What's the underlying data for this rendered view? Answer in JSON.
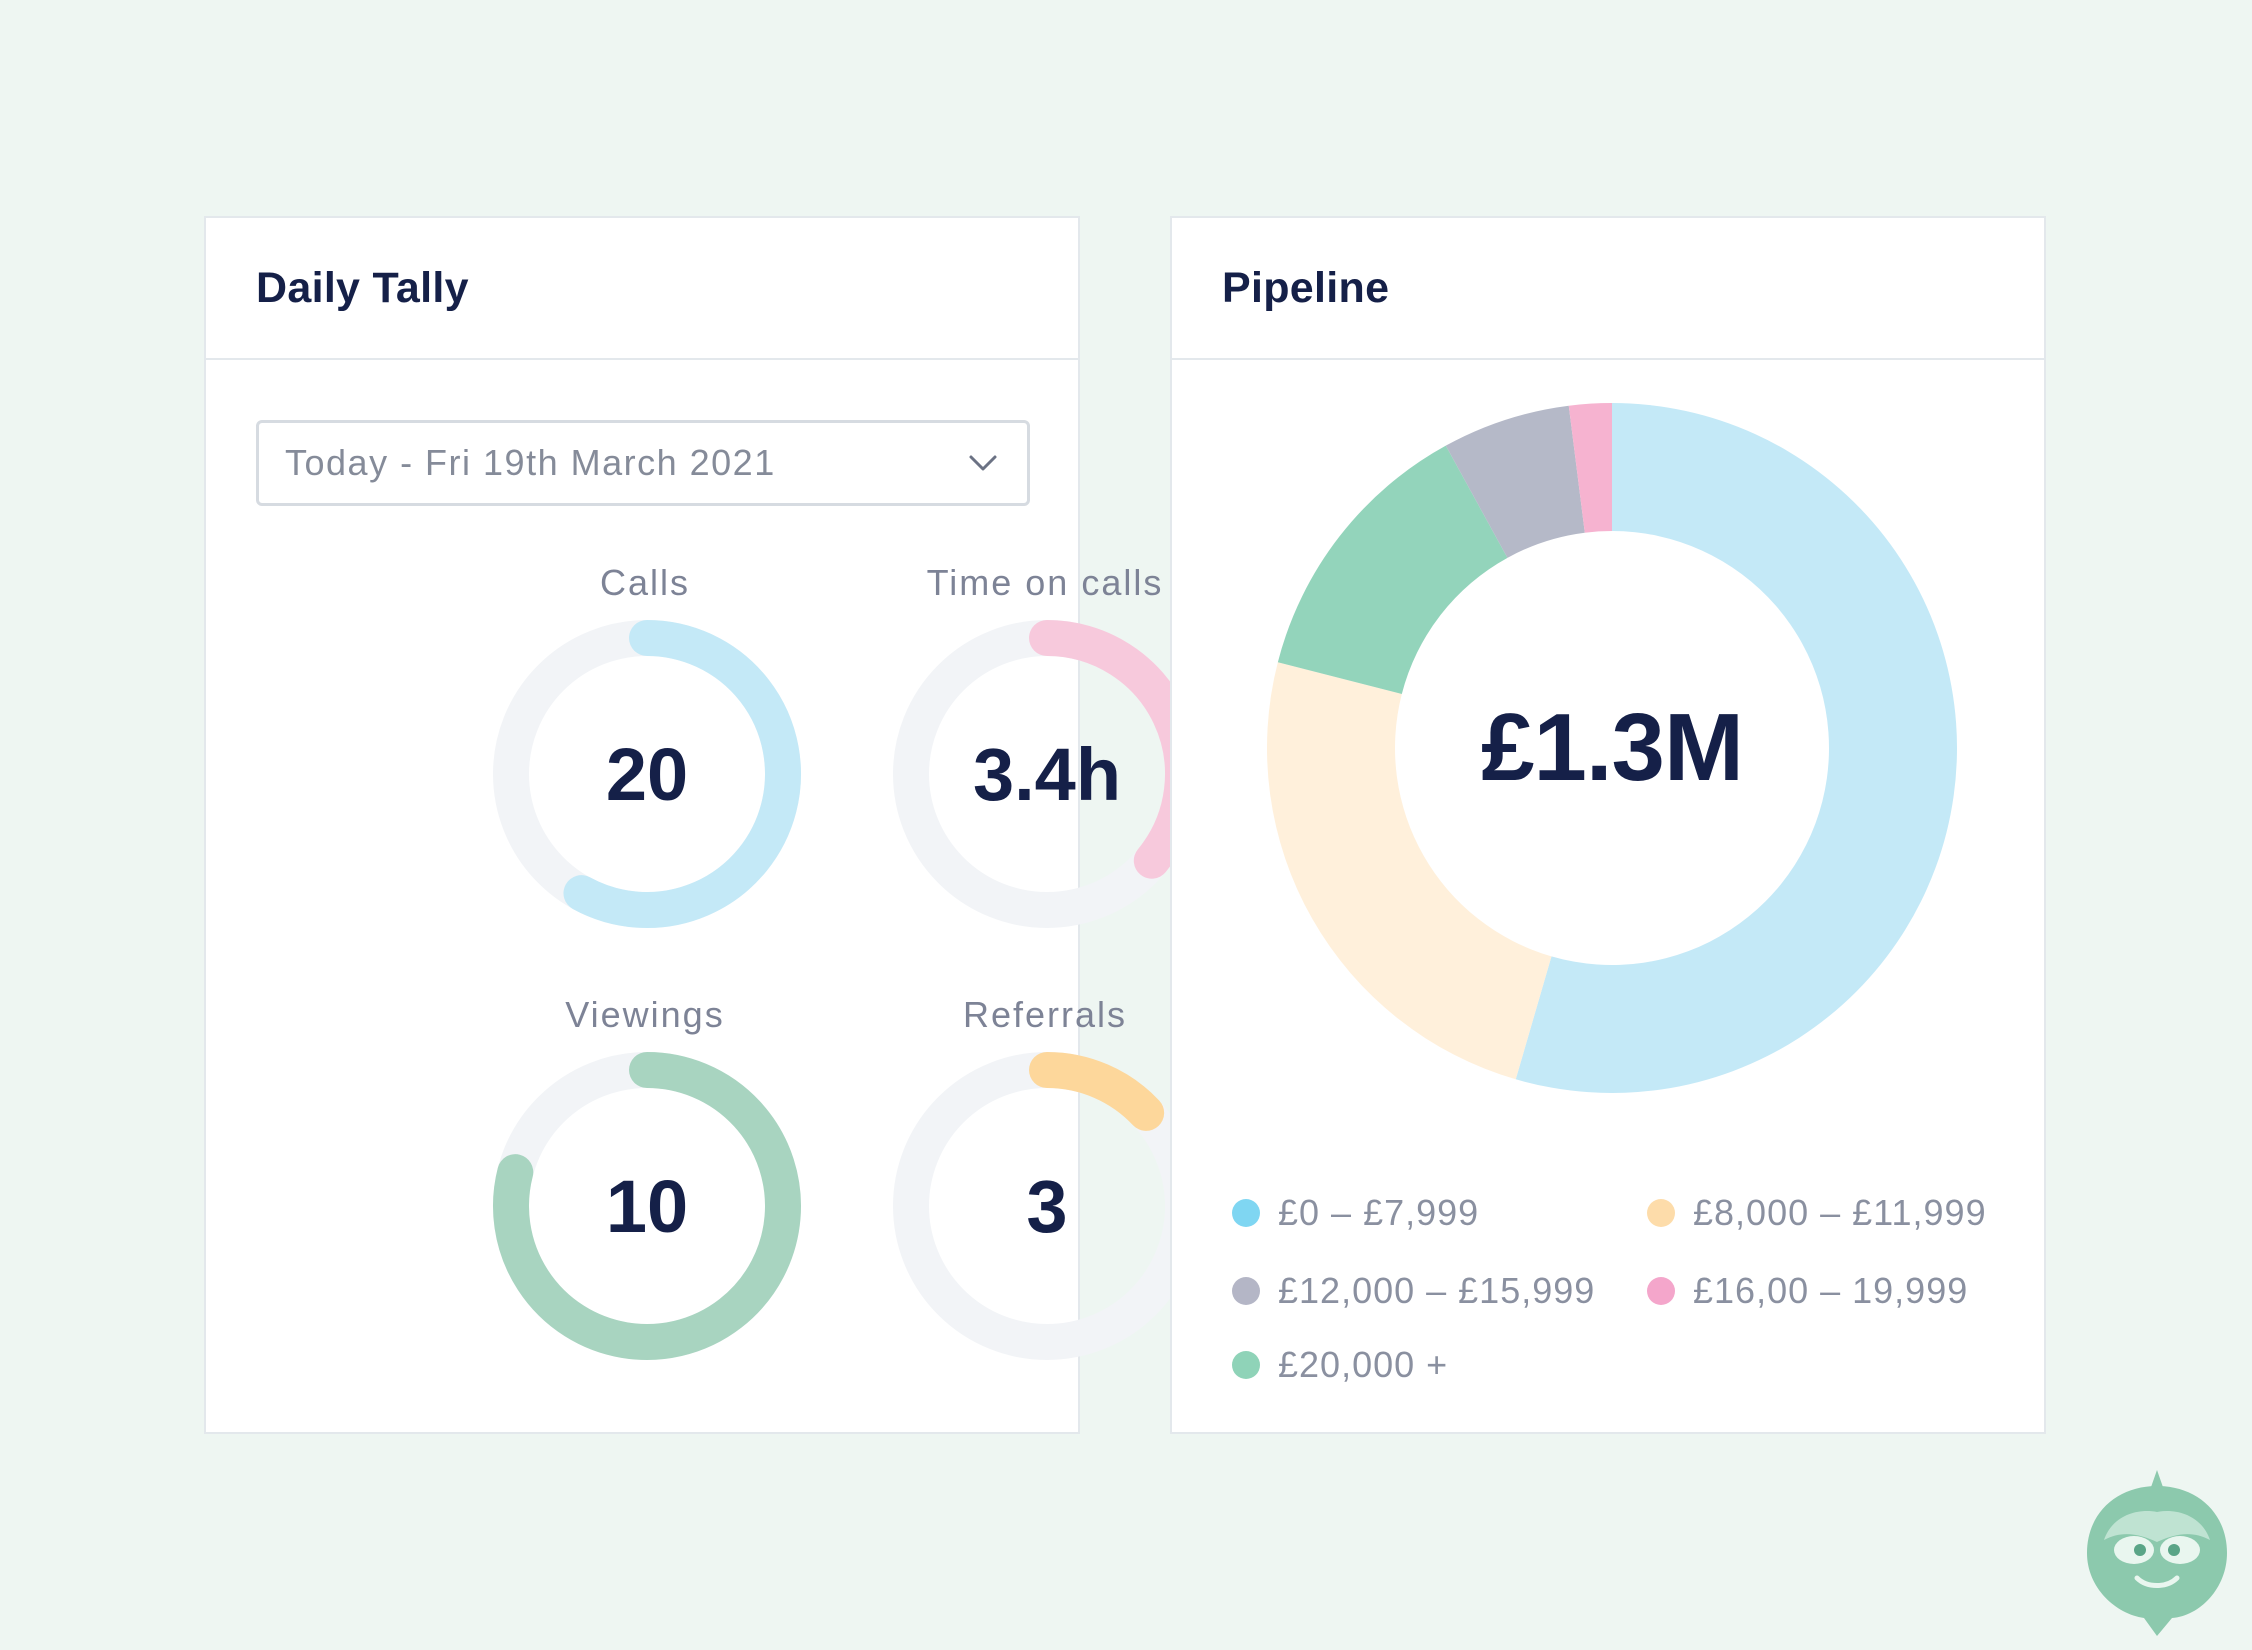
{
  "tally": {
    "title": "Daily Tally",
    "dropdown": {
      "value": "Today - Fri 19th March 2021"
    },
    "metrics": [
      {
        "label": "Calls",
        "value": "20",
        "color": "#c4e9f7",
        "arc_start": 0.0,
        "arc_fraction": 0.58
      },
      {
        "label": "Time on calls",
        "value": "3.4h",
        "color": "#f7c9dc",
        "arc_start": 0.0,
        "arc_fraction": 0.36
      },
      {
        "label": "Viewings",
        "value": "10",
        "color": "#a8d4c0",
        "arc_start": 0.0,
        "arc_fraction": 0.79
      },
      {
        "label": "Referrals",
        "value": "3",
        "color": "#fdd79b",
        "arc_start": 0.0,
        "arc_fraction": 0.13
      }
    ],
    "track_color": "#f2f4f7"
  },
  "pipeline": {
    "title": "Pipeline",
    "total": "£1.3M",
    "legend": [
      {
        "label": "£0 – £7,999",
        "color": "#7fd6f2"
      },
      {
        "label": "£8,000 – £11,999",
        "color": "#fddcaa"
      },
      {
        "label": "£12,000 – £15,999",
        "color": "#b4b6c6"
      },
      {
        "label": "£16,00 – 19,999",
        "color": "#f4a6cb"
      },
      {
        "label": "£20,000 +",
        "color": "#8fd3b8"
      }
    ],
    "segments": [
      {
        "name": "£0 – £7,999",
        "share": 0.545,
        "color": "#c4e9f7"
      },
      {
        "name": "£8,000 – £11,999",
        "share": 0.245,
        "color": "#fff0db"
      },
      {
        "name": "£20,000 +",
        "share": 0.13,
        "color": "#93d4bb"
      },
      {
        "name": "£12,000 – £15,999",
        "share": 0.06,
        "color": "#b5b9c8"
      },
      {
        "name": "£16,00 – 19,999",
        "share": 0.02,
        "color": "#f6b3d0"
      }
    ]
  },
  "mascot": {
    "icon": "mascot-face-icon",
    "color": "#8cc9ad"
  }
}
